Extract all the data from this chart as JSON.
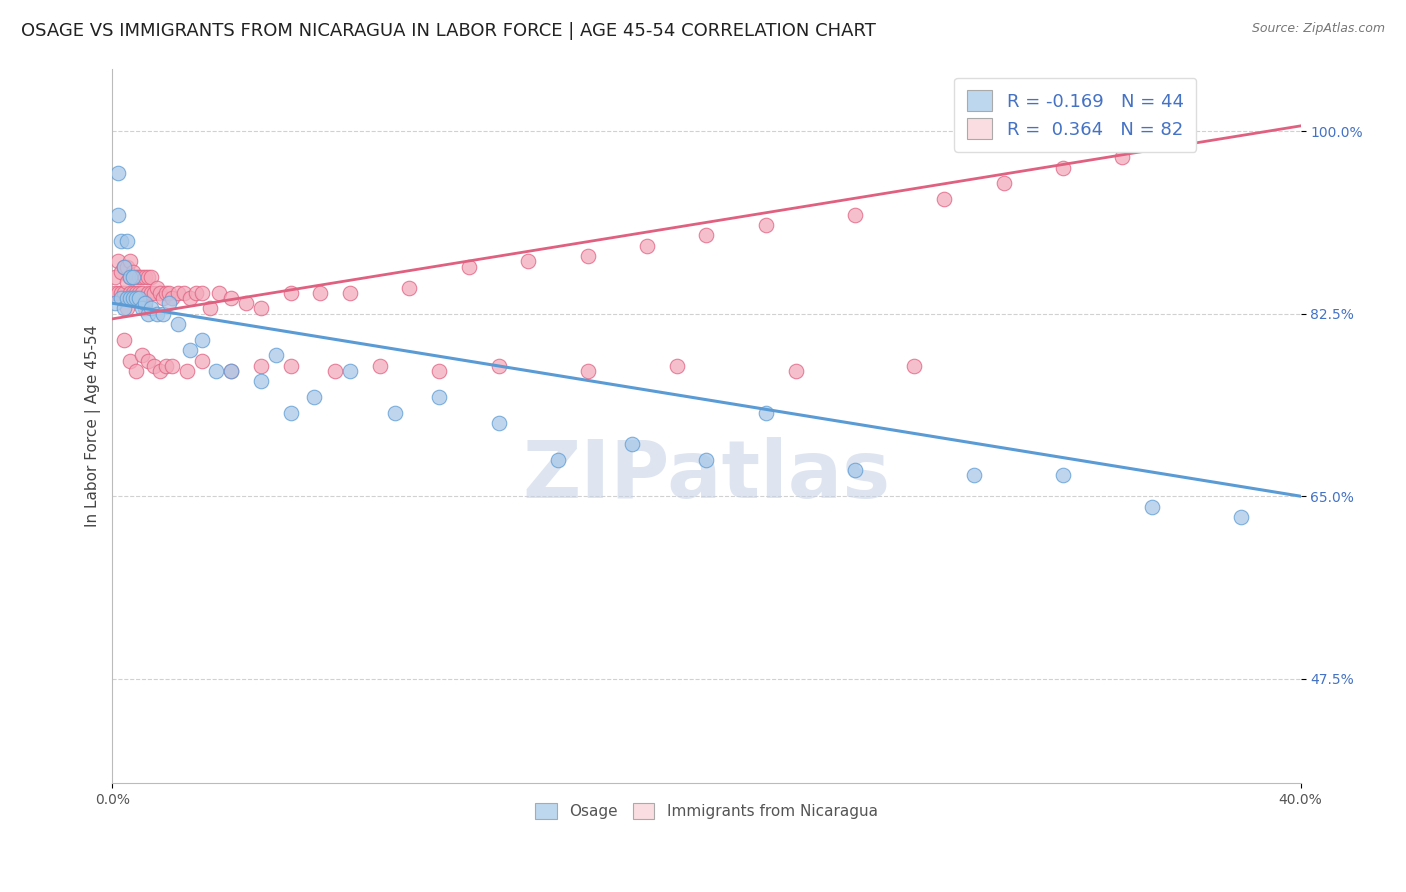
{
  "title": "OSAGE VS IMMIGRANTS FROM NICARAGUA IN LABOR FORCE | AGE 45-54 CORRELATION CHART",
  "source": "Source: ZipAtlas.com",
  "ylabel": "In Labor Force | Age 45-54",
  "xlim": [
    0.0,
    0.4
  ],
  "ylim": [
    0.375,
    1.06
  ],
  "yticks": [
    0.475,
    0.65,
    0.825,
    1.0
  ],
  "ytick_labels": [
    "47.5%",
    "65.0%",
    "82.5%",
    "100.0%"
  ],
  "osage_R": -0.169,
  "osage_N": 44,
  "nicaragua_R": 0.364,
  "nicaragua_N": 82,
  "blue_color": "#A8C8E8",
  "blue_edge": "#5B9BD5",
  "pink_color": "#F4AABB",
  "pink_edge": "#E06080",
  "blue_line_color": "#5B9BD5",
  "pink_line_color": "#E06080",
  "blue_fill": "#BDD7EE",
  "pink_fill": "#FADDE1",
  "watermark": "ZIPatlas",
  "watermark_color": "#C8D4E8",
  "legend_label_1": "Osage",
  "legend_label_2": "Immigrants from Nicaragua",
  "title_fontsize": 13,
  "axis_fontsize": 11,
  "tick_fontsize": 10,
  "osage_x": [
    0.001,
    0.002,
    0.002,
    0.003,
    0.003,
    0.004,
    0.004,
    0.005,
    0.005,
    0.006,
    0.006,
    0.007,
    0.007,
    0.008,
    0.009,
    0.01,
    0.011,
    0.012,
    0.013,
    0.015,
    0.017,
    0.019,
    0.022,
    0.026,
    0.03,
    0.035,
    0.04,
    0.05,
    0.055,
    0.06,
    0.068,
    0.08,
    0.095,
    0.11,
    0.13,
    0.15,
    0.175,
    0.2,
    0.22,
    0.25,
    0.29,
    0.32,
    0.35,
    0.38
  ],
  "osage_y": [
    0.835,
    0.96,
    0.92,
    0.84,
    0.895,
    0.83,
    0.87,
    0.84,
    0.895,
    0.84,
    0.86,
    0.84,
    0.86,
    0.84,
    0.84,
    0.83,
    0.835,
    0.825,
    0.83,
    0.825,
    0.825,
    0.835,
    0.815,
    0.79,
    0.8,
    0.77,
    0.77,
    0.76,
    0.785,
    0.73,
    0.745,
    0.77,
    0.73,
    0.745,
    0.72,
    0.685,
    0.7,
    0.685,
    0.73,
    0.675,
    0.67,
    0.67,
    0.64,
    0.63
  ],
  "nicaragua_x": [
    0.001,
    0.001,
    0.002,
    0.002,
    0.003,
    0.003,
    0.004,
    0.004,
    0.005,
    0.005,
    0.005,
    0.006,
    0.006,
    0.006,
    0.007,
    0.007,
    0.008,
    0.008,
    0.009,
    0.009,
    0.01,
    0.01,
    0.011,
    0.011,
    0.012,
    0.012,
    0.013,
    0.013,
    0.014,
    0.015,
    0.016,
    0.017,
    0.018,
    0.019,
    0.02,
    0.022,
    0.024,
    0.026,
    0.028,
    0.03,
    0.033,
    0.036,
    0.04,
    0.045,
    0.05,
    0.06,
    0.07,
    0.08,
    0.1,
    0.12,
    0.14,
    0.16,
    0.18,
    0.2,
    0.22,
    0.25,
    0.28,
    0.3,
    0.32,
    0.34,
    0.004,
    0.006,
    0.008,
    0.01,
    0.012,
    0.014,
    0.016,
    0.018,
    0.02,
    0.025,
    0.03,
    0.04,
    0.05,
    0.06,
    0.075,
    0.09,
    0.11,
    0.13,
    0.16,
    0.19,
    0.23,
    0.27
  ],
  "nicaragua_y": [
    0.845,
    0.86,
    0.845,
    0.875,
    0.845,
    0.865,
    0.845,
    0.87,
    0.83,
    0.855,
    0.87,
    0.845,
    0.86,
    0.875,
    0.845,
    0.865,
    0.845,
    0.86,
    0.845,
    0.86,
    0.845,
    0.86,
    0.83,
    0.86,
    0.845,
    0.86,
    0.845,
    0.86,
    0.845,
    0.85,
    0.845,
    0.84,
    0.845,
    0.845,
    0.84,
    0.845,
    0.845,
    0.84,
    0.845,
    0.845,
    0.83,
    0.845,
    0.84,
    0.835,
    0.83,
    0.845,
    0.845,
    0.845,
    0.85,
    0.87,
    0.875,
    0.88,
    0.89,
    0.9,
    0.91,
    0.92,
    0.935,
    0.95,
    0.965,
    0.975,
    0.8,
    0.78,
    0.77,
    0.785,
    0.78,
    0.775,
    0.77,
    0.775,
    0.775,
    0.77,
    0.78,
    0.77,
    0.775,
    0.775,
    0.77,
    0.775,
    0.77,
    0.775,
    0.77,
    0.775,
    0.77,
    0.775
  ]
}
